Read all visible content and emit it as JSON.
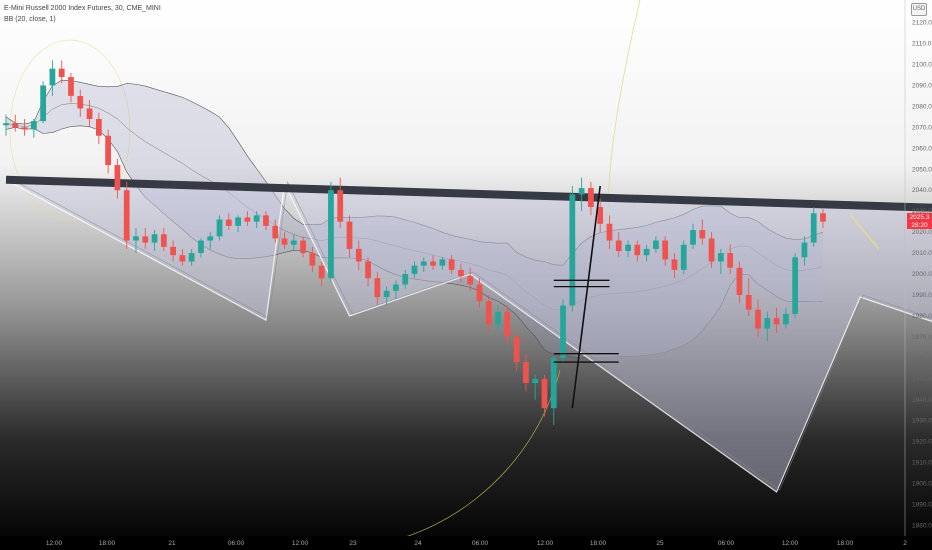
{
  "header": {
    "symbol_title": "E-Mini Russell 2000 Index Futures, 30, CME_MINI",
    "indicator": "BB (20, close, 1)"
  },
  "price_axis": {
    "current_price": "2025.3",
    "countdown": "28:20",
    "currency_label": "USD"
  },
  "colors": {
    "up_candle": "#26a69a",
    "down_candle": "#ef5350",
    "neckline": "#363a45",
    "pattern_fill": "#c9c9e6",
    "price_tag": "#f23645",
    "fib_lines": "#f5e35c",
    "bb_band": "#9d9dc4"
  },
  "chart_data": {
    "type": "candlestick",
    "title": "E-Mini Russell 2000 Index Futures, 30, CME_MINI",
    "x_ticks": [
      "12:00",
      "18:00",
      "21",
      "06:00",
      "12:00",
      "23",
      "24",
      "06:00",
      "12:00",
      "18:00",
      "25",
      "06:00",
      "12:00",
      "18:00",
      "2"
    ],
    "y_ticks": [
      2120,
      2110,
      2100,
      2090,
      2080,
      2070,
      2060,
      2050,
      2040,
      2030,
      2020,
      2010,
      2000,
      1990,
      1980,
      1970,
      1960,
      1950,
      1940,
      1930,
      1920,
      1910,
      1900,
      1890,
      1880
    ],
    "ylim": [
      1875,
      2126
    ],
    "indicator": "BB (20, close, 1)",
    "last_price": 2025.3,
    "neckline": [
      [
        0,
        2045
      ],
      [
        120,
        2029
      ]
    ],
    "pattern_path": [
      [
        0,
        2045
      ],
      [
        28,
        1978
      ],
      [
        30,
        2043
      ],
      [
        37,
        1980
      ],
      [
        50,
        2000
      ],
      [
        83,
        1896
      ],
      [
        92,
        1989
      ],
      [
        118,
        1950
      ],
      [
        123,
        2028
      ]
    ],
    "candles": [
      {
        "o": 2071,
        "h": 2076,
        "l": 2066,
        "c": 2072
      },
      {
        "o": 2072,
        "h": 2076,
        "l": 2068,
        "c": 2070
      },
      {
        "o": 2070,
        "h": 2074,
        "l": 2066,
        "c": 2069
      },
      {
        "o": 2069,
        "h": 2074,
        "l": 2065,
        "c": 2073
      },
      {
        "o": 2073,
        "h": 2092,
        "l": 2072,
        "c": 2090
      },
      {
        "o": 2090,
        "h": 2102,
        "l": 2085,
        "c": 2098
      },
      {
        "o": 2098,
        "h": 2102,
        "l": 2091,
        "c": 2094
      },
      {
        "o": 2094,
        "h": 2096,
        "l": 2082,
        "c": 2085
      },
      {
        "o": 2085,
        "h": 2088,
        "l": 2075,
        "c": 2079
      },
      {
        "o": 2079,
        "h": 2083,
        "l": 2070,
        "c": 2074
      },
      {
        "o": 2074,
        "h": 2077,
        "l": 2062,
        "c": 2066
      },
      {
        "o": 2066,
        "h": 2069,
        "l": 2048,
        "c": 2052
      },
      {
        "o": 2052,
        "h": 2055,
        "l": 2036,
        "c": 2040
      },
      {
        "o": 2040,
        "h": 2044,
        "l": 2012,
        "c": 2016
      },
      {
        "o": 2016,
        "h": 2022,
        "l": 2010,
        "c": 2018
      },
      {
        "o": 2018,
        "h": 2022,
        "l": 2012,
        "c": 2015
      },
      {
        "o": 2015,
        "h": 2021,
        "l": 2011,
        "c": 2019
      },
      {
        "o": 2019,
        "h": 2022,
        "l": 2011,
        "c": 2013
      },
      {
        "o": 2013,
        "h": 2016,
        "l": 2006,
        "c": 2009
      },
      {
        "o": 2009,
        "h": 2012,
        "l": 2004,
        "c": 2006
      },
      {
        "o": 2006,
        "h": 2012,
        "l": 2004,
        "c": 2010
      },
      {
        "o": 2010,
        "h": 2017,
        "l": 2008,
        "c": 2016
      },
      {
        "o": 2016,
        "h": 2020,
        "l": 2012,
        "c": 2018
      },
      {
        "o": 2018,
        "h": 2028,
        "l": 2016,
        "c": 2026
      },
      {
        "o": 2026,
        "h": 2029,
        "l": 2021,
        "c": 2023
      },
      {
        "o": 2023,
        "h": 2028,
        "l": 2020,
        "c": 2027
      },
      {
        "o": 2027,
        "h": 2030,
        "l": 2023,
        "c": 2025
      },
      {
        "o": 2025,
        "h": 2030,
        "l": 2022,
        "c": 2028
      },
      {
        "o": 2028,
        "h": 2030,
        "l": 2021,
        "c": 2023
      },
      {
        "o": 2023,
        "h": 2026,
        "l": 2015,
        "c": 2017
      },
      {
        "o": 2017,
        "h": 2020,
        "l": 2012,
        "c": 2014
      },
      {
        "o": 2014,
        "h": 2019,
        "l": 2011,
        "c": 2016
      },
      {
        "o": 2016,
        "h": 2018,
        "l": 2008,
        "c": 2010
      },
      {
        "o": 2010,
        "h": 2013,
        "l": 2001,
        "c": 2004
      },
      {
        "o": 2004,
        "h": 2006,
        "l": 1994,
        "c": 1998
      },
      {
        "o": 1998,
        "h": 2044,
        "l": 1996,
        "c": 2040
      },
      {
        "o": 2040,
        "h": 2046,
        "l": 2022,
        "c": 2025
      },
      {
        "o": 2025,
        "h": 2028,
        "l": 2008,
        "c": 2012
      },
      {
        "o": 2012,
        "h": 2016,
        "l": 2002,
        "c": 2006
      },
      {
        "o": 2006,
        "h": 2008,
        "l": 1994,
        "c": 1998
      },
      {
        "o": 1998,
        "h": 2001,
        "l": 1985,
        "c": 1989
      },
      {
        "o": 1989,
        "h": 1994,
        "l": 1985,
        "c": 1992
      },
      {
        "o": 1992,
        "h": 1997,
        "l": 1988,
        "c": 1995
      },
      {
        "o": 1995,
        "h": 2002,
        "l": 1993,
        "c": 2000
      },
      {
        "o": 2000,
        "h": 2006,
        "l": 1998,
        "c": 2004
      },
      {
        "o": 2004,
        "h": 2008,
        "l": 2001,
        "c": 2006
      },
      {
        "o": 2006,
        "h": 2009,
        "l": 2002,
        "c": 2004
      },
      {
        "o": 2004,
        "h": 2008,
        "l": 2002,
        "c": 2007
      },
      {
        "o": 2007,
        "h": 2009,
        "l": 2000,
        "c": 2002
      },
      {
        "o": 2002,
        "h": 2005,
        "l": 1996,
        "c": 1999
      },
      {
        "o": 1999,
        "h": 2003,
        "l": 1992,
        "c": 1995
      },
      {
        "o": 1995,
        "h": 1998,
        "l": 1984,
        "c": 1987
      },
      {
        "o": 1987,
        "h": 1990,
        "l": 1972,
        "c": 1976
      },
      {
        "o": 1976,
        "h": 1985,
        "l": 1972,
        "c": 1982
      },
      {
        "o": 1982,
        "h": 1985,
        "l": 1966,
        "c": 1970
      },
      {
        "o": 1970,
        "h": 1973,
        "l": 1954,
        "c": 1958
      },
      {
        "o": 1958,
        "h": 1962,
        "l": 1944,
        "c": 1948
      },
      {
        "o": 1948,
        "h": 1952,
        "l": 1940,
        "c": 1950
      },
      {
        "o": 1950,
        "h": 1952,
        "l": 1932,
        "c": 1936
      },
      {
        "o": 1936,
        "h": 1962,
        "l": 1928,
        "c": 1960
      },
      {
        "o": 1960,
        "h": 1988,
        "l": 1957,
        "c": 1985
      },
      {
        "o": 1985,
        "h": 2042,
        "l": 1982,
        "c": 2038
      },
      {
        "o": 2038,
        "h": 2046,
        "l": 2030,
        "c": 2041
      },
      {
        "o": 2041,
        "h": 2044,
        "l": 2028,
        "c": 2032
      },
      {
        "o": 2032,
        "h": 2036,
        "l": 2020,
        "c": 2024
      },
      {
        "o": 2024,
        "h": 2028,
        "l": 2012,
        "c": 2016
      },
      {
        "o": 2016,
        "h": 2020,
        "l": 2008,
        "c": 2011
      },
      {
        "o": 2011,
        "h": 2016,
        "l": 2008,
        "c": 2014
      },
      {
        "o": 2014,
        "h": 2016,
        "l": 2006,
        "c": 2009
      },
      {
        "o": 2009,
        "h": 2014,
        "l": 2006,
        "c": 2012
      },
      {
        "o": 2012,
        "h": 2018,
        "l": 2010,
        "c": 2016
      },
      {
        "o": 2016,
        "h": 2018,
        "l": 2004,
        "c": 2007
      },
      {
        "o": 2007,
        "h": 2010,
        "l": 1998,
        "c": 2002
      },
      {
        "o": 2002,
        "h": 2016,
        "l": 2000,
        "c": 2014
      },
      {
        "o": 2014,
        "h": 2024,
        "l": 2012,
        "c": 2021
      },
      {
        "o": 2021,
        "h": 2026,
        "l": 2014,
        "c": 2017
      },
      {
        "o": 2017,
        "h": 2020,
        "l": 2003,
        "c": 2006
      },
      {
        "o": 2006,
        "h": 2012,
        "l": 2000,
        "c": 2010
      },
      {
        "o": 2010,
        "h": 2014,
        "l": 2000,
        "c": 2003
      },
      {
        "o": 2003,
        "h": 2006,
        "l": 1986,
        "c": 1990
      },
      {
        "o": 1990,
        "h": 1998,
        "l": 1980,
        "c": 1983
      },
      {
        "o": 1983,
        "h": 1988,
        "l": 1970,
        "c": 1974
      },
      {
        "o": 1974,
        "h": 1982,
        "l": 1968,
        "c": 1979
      },
      {
        "o": 1979,
        "h": 1984,
        "l": 1972,
        "c": 1976
      },
      {
        "o": 1976,
        "h": 1984,
        "l": 1974,
        "c": 1981
      },
      {
        "o": 1981,
        "h": 2010,
        "l": 1979,
        "c": 2008
      },
      {
        "o": 2008,
        "h": 2018,
        "l": 2004,
        "c": 2015
      },
      {
        "o": 2015,
        "h": 2032,
        "l": 2013,
        "c": 2029
      },
      {
        "o": 2029,
        "h": 2031,
        "l": 2022,
        "c": 2025
      }
    ]
  }
}
